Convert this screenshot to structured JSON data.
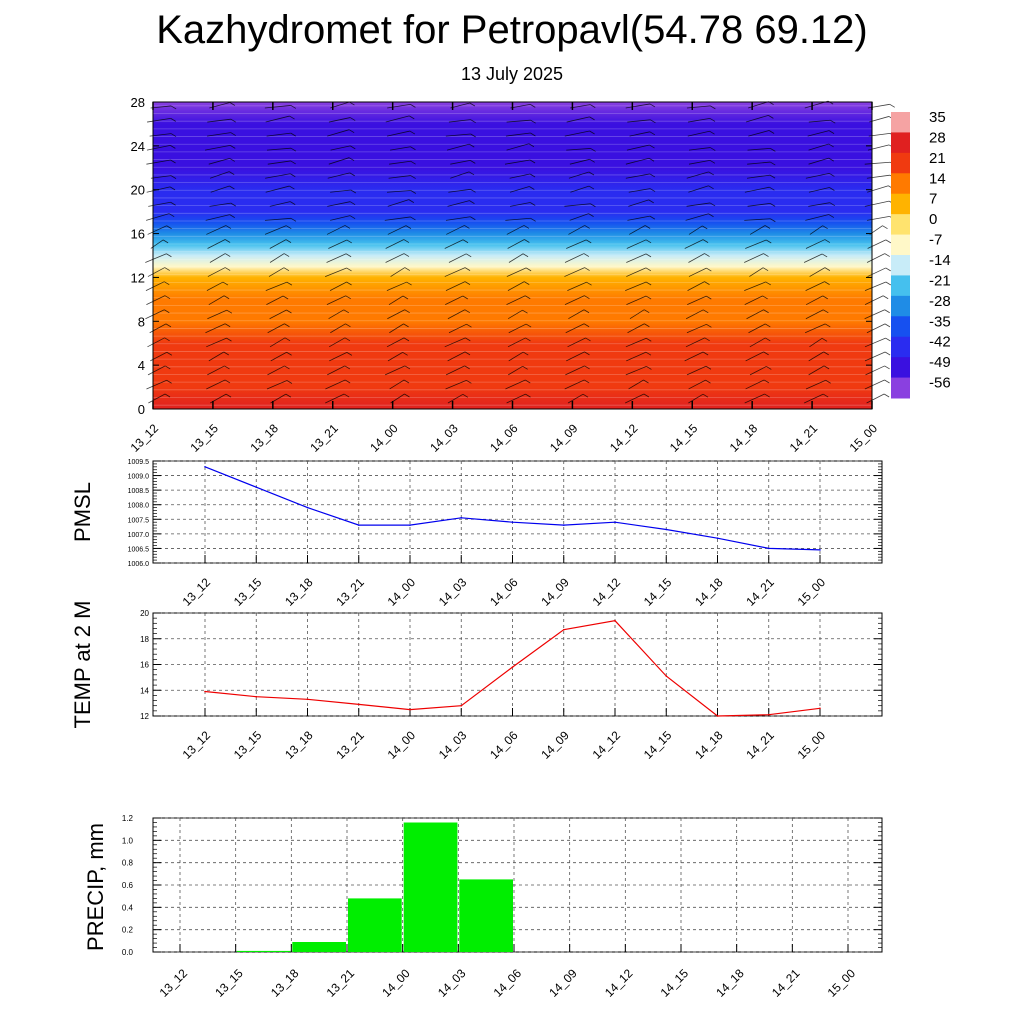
{
  "title": "Kazhydromet for Petropavl(54.78 69.12)",
  "subtitle": "13 July 2025",
  "time_labels": [
    "13_12",
    "13_15",
    "13_18",
    "13_21",
    "14_00",
    "14_03",
    "14_06",
    "14_09",
    "14_12",
    "14_15",
    "14_18",
    "14_21",
    "15_00"
  ],
  "chart_data": [
    {
      "type": "heatmap",
      "title": "",
      "xlabel": "",
      "ylabel": "",
      "x": [
        "13_12",
        "13_15",
        "13_18",
        "13_21",
        "14_00",
        "14_03",
        "14_06",
        "14_09",
        "14_12",
        "14_15",
        "14_18",
        "14_21",
        "15_00"
      ],
      "y_ticks": [
        0,
        4,
        8,
        12,
        16,
        20,
        24,
        28
      ],
      "ylim": [
        0,
        28
      ],
      "colorbar": {
        "labels": [
          "35",
          "28",
          "21",
          "14",
          "7",
          "0",
          "-7",
          "-14",
          "-21",
          "-28",
          "-35",
          "-42",
          "-49",
          "-56"
        ],
        "colors": [
          "#f5a3a3",
          "#e02020",
          "#f03a10",
          "#ff7a00",
          "#ffb300",
          "#ffe36e",
          "#fff8c8",
          "#c8ecf8",
          "#45c0ee",
          "#1f8ce6",
          "#1650f0",
          "#2a2cf0",
          "#3a10e0",
          "#8a40e0"
        ]
      },
      "profile": {
        "levels": [
          0,
          2,
          4,
          6,
          8,
          10,
          12,
          13,
          14,
          15,
          16,
          17,
          18,
          20,
          22,
          24,
          26,
          28
        ],
        "values": [
          22,
          20,
          18,
          15,
          12,
          8,
          2,
          -8,
          -18,
          -26,
          -34,
          -40,
          -45,
          -48,
          -50,
          -52,
          -55,
          -57
        ]
      },
      "wind_barbs": true
    },
    {
      "type": "line",
      "title": "",
      "xlabel": "",
      "ylabel": "PMSL",
      "x": [
        "13_12",
        "13_15",
        "13_18",
        "13_21",
        "14_00",
        "14_03",
        "14_06",
        "14_09",
        "14_12",
        "14_15",
        "14_18",
        "14_21",
        "15_00"
      ],
      "series": [
        {
          "values": [
            1009.3,
            1008.6,
            1007.9,
            1007.3,
            1007.3,
            1007.55,
            1007.4,
            1007.3,
            1007.4,
            1007.15,
            1006.85,
            1006.5,
            1006.45
          ],
          "color": "#0000ee"
        }
      ],
      "ylim": [
        1006.0,
        1009.5
      ],
      "y_ticks": [
        "1006.0",
        "1006.5",
        "1007.0",
        "1007.5",
        "1008.0",
        "1008.5",
        "1009.0",
        "1009.5"
      ],
      "grid": true
    },
    {
      "type": "line",
      "title": "",
      "xlabel": "",
      "ylabel": "TEMP at 2 M",
      "x": [
        "13_12",
        "13_15",
        "13_18",
        "13_21",
        "14_00",
        "14_03",
        "14_06",
        "14_09",
        "14_12",
        "14_15",
        "14_18",
        "14_21",
        "15_00"
      ],
      "series": [
        {
          "values": [
            13.9,
            13.5,
            13.3,
            12.9,
            12.5,
            12.8,
            15.8,
            18.7,
            19.4,
            15.1,
            12.0,
            12.1,
            12.6
          ],
          "color": "#ee0000"
        }
      ],
      "ylim": [
        12,
        20
      ],
      "y_ticks": [
        "12",
        "14",
        "16",
        "18",
        "20"
      ],
      "grid": true
    },
    {
      "type": "bar",
      "title": "",
      "xlabel": "",
      "ylabel": "PRECIP, mm",
      "categories": [
        "13_12",
        "13_15",
        "13_18",
        "13_21",
        "14_00",
        "14_03",
        "14_06",
        "14_09",
        "14_12",
        "14_15",
        "14_18",
        "14_21",
        "15_00"
      ],
      "values": [
        0,
        0,
        0.01,
        0.09,
        0.48,
        1.16,
        0.65,
        0,
        0,
        0,
        0,
        0,
        0
      ],
      "bar_color": "#00ee00",
      "ylim": [
        0,
        1.2
      ],
      "y_ticks": [
        "0.0",
        "0.2",
        "0.4",
        "0.6",
        "0.8",
        "1.0",
        "1.2"
      ],
      "grid": true
    }
  ]
}
